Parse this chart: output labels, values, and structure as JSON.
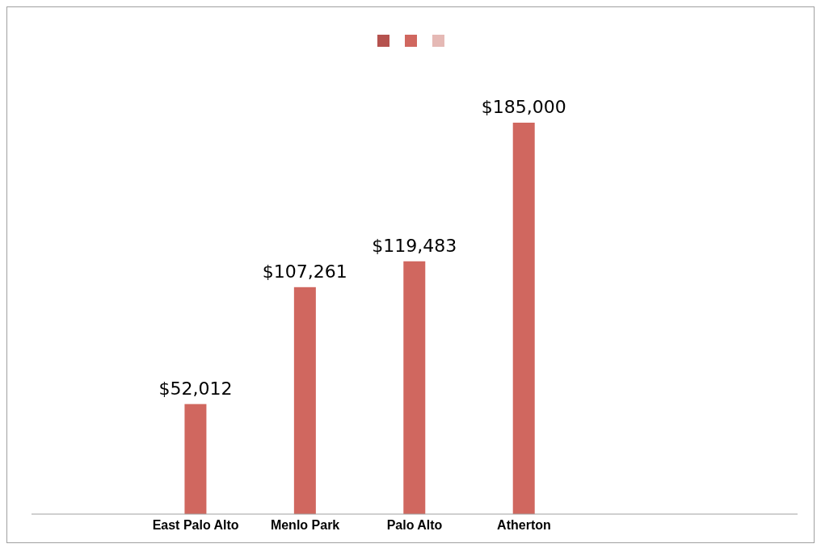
{
  "chart_data": {
    "type": "bar",
    "categories": [
      null,
      "East Palo Alto",
      "Menlo Park",
      "Palo Alto",
      "Atherton",
      null,
      null
    ],
    "series": [
      {
        "color": "#b5524e",
        "values": [
          null,
          null,
          null,
          null,
          null,
          null,
          null
        ]
      },
      {
        "color": "#d0675f",
        "values": [
          null,
          52012,
          107261,
          119483,
          185000,
          null,
          null
        ],
        "value_labels": [
          null,
          "$52,012",
          "$107,261",
          "$119,483",
          "$185,000",
          null,
          null
        ]
      },
      {
        "color": "#e5b9b5",
        "values": [
          null,
          null,
          null,
          null,
          null,
          null,
          null
        ]
      }
    ]
  }
}
